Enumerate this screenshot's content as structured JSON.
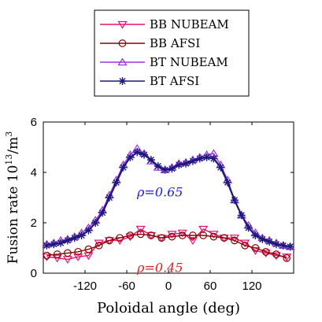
{
  "chart_data": {
    "type": "line",
    "xlabel": "Poloidal angle (deg)",
    "ylabel": "Fusion rate 10",
    "ylabel_sup": "13",
    "ylabel_tail": "/m",
    "ylabel_sup2": "3",
    "xlim": [
      -180,
      180
    ],
    "ylim": [
      0,
      6
    ],
    "xticks": [
      -120,
      -60,
      0,
      60,
      120
    ],
    "xtick_labels": [
      "-120",
      "-60",
      "0",
      "60",
      "120"
    ],
    "yticks": [
      0,
      2,
      4,
      6
    ],
    "ytick_labels": [
      "0",
      "2",
      "4",
      "6"
    ],
    "grid": false,
    "legend_position": "top",
    "annotations": [
      {
        "text": "ρ=0.65",
        "x": 0,
        "y": 3.2,
        "color": "#2020e0"
      },
      {
        "text": "ρ=0.45",
        "x": 0,
        "y": 0.2,
        "color": "#e02020"
      }
    ],
    "series": [
      {
        "name": "BB NUBEAM",
        "color": "#e8126e",
        "marker": "triangle-down",
        "x": [
          -175,
          -160,
          -145,
          -130,
          -115,
          -100,
          -85,
          -70,
          -55,
          -40,
          -25,
          -10,
          5,
          20,
          35,
          50,
          65,
          80,
          95,
          110,
          125,
          140,
          155,
          170
        ],
        "y": [
          0.65,
          0.6,
          0.55,
          0.65,
          0.7,
          1.2,
          1.3,
          1.3,
          1.45,
          1.75,
          1.5,
          1.4,
          1.55,
          1.6,
          1.3,
          1.75,
          1.55,
          1.4,
          1.4,
          1.2,
          0.9,
          0.8,
          0.7,
          0.65
        ]
      },
      {
        "name": "BB AFSI",
        "color": "#8b0000",
        "marker": "circle",
        "x": [
          -175,
          -160,
          -145,
          -130,
          -115,
          -100,
          -85,
          -70,
          -55,
          -40,
          -25,
          -10,
          5,
          20,
          35,
          50,
          65,
          80,
          95,
          110,
          125,
          140,
          155,
          170
        ],
        "y": [
          0.7,
          0.75,
          0.8,
          0.85,
          0.95,
          1.1,
          1.3,
          1.4,
          1.5,
          1.55,
          1.5,
          1.4,
          1.45,
          1.5,
          1.5,
          1.5,
          1.45,
          1.4,
          1.3,
          1.1,
          1.0,
          0.85,
          0.75,
          0.6
        ]
      },
      {
        "name": "BT NUBEAM",
        "color": "#9b30e0",
        "marker": "triangle-up",
        "x": [
          -175,
          -165,
          -155,
          -145,
          -135,
          -125,
          -115,
          -105,
          -95,
          -85,
          -75,
          -65,
          -55,
          -45,
          -35,
          -25,
          -15,
          -5,
          5,
          15,
          25,
          35,
          45,
          55,
          65,
          75,
          85,
          95,
          105,
          115,
          125,
          135,
          145,
          155,
          165,
          175
        ],
        "y": [
          1.15,
          1.2,
          1.3,
          1.35,
          1.45,
          1.6,
          1.8,
          2.1,
          2.5,
          3.1,
          3.7,
          4.3,
          4.7,
          4.95,
          4.75,
          4.45,
          4.2,
          4.1,
          4.2,
          4.35,
          4.4,
          4.5,
          4.6,
          4.7,
          4.75,
          4.3,
          3.7,
          2.9,
          2.3,
          1.9,
          1.6,
          1.4,
          1.3,
          1.2,
          1.1,
          1.05
        ]
      },
      {
        "name": "BT AFSI",
        "color": "#1a1a7a",
        "marker": "asterisk",
        "x": [
          -175,
          -165,
          -155,
          -145,
          -135,
          -125,
          -115,
          -105,
          -95,
          -85,
          -75,
          -65,
          -55,
          -45,
          -35,
          -25,
          -15,
          -5,
          5,
          15,
          25,
          35,
          45,
          55,
          65,
          75,
          85,
          95,
          105,
          115,
          125,
          135,
          145,
          155,
          165,
          175
        ],
        "y": [
          1.1,
          1.15,
          1.2,
          1.3,
          1.4,
          1.5,
          1.7,
          2.0,
          2.4,
          3.0,
          3.6,
          4.2,
          4.6,
          4.8,
          4.7,
          4.5,
          4.25,
          4.1,
          4.15,
          4.3,
          4.35,
          4.45,
          4.55,
          4.6,
          4.55,
          4.2,
          3.6,
          2.9,
          2.3,
          1.8,
          1.5,
          1.35,
          1.25,
          1.15,
          1.1,
          1.05
        ]
      }
    ]
  }
}
